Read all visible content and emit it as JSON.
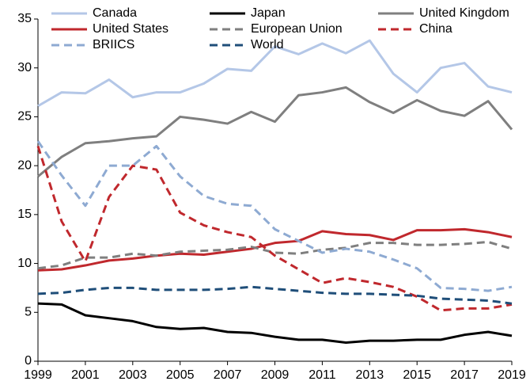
{
  "chart_data": {
    "type": "line",
    "x": [
      1999,
      2000,
      2001,
      2002,
      2003,
      2004,
      2005,
      2006,
      2007,
      2008,
      2009,
      2010,
      2011,
      2012,
      2013,
      2014,
      2015,
      2016,
      2017,
      2018,
      2019
    ],
    "xlim": [
      1999,
      2019
    ],
    "xticks": [
      1999,
      2001,
      2003,
      2005,
      2007,
      2009,
      2011,
      2013,
      2015,
      2017,
      2019
    ],
    "ylim": [
      0,
      35
    ],
    "yticks": [
      0,
      5,
      10,
      15,
      20,
      25,
      30,
      35
    ],
    "series": [
      {
        "name": "Canada",
        "color": "#b4c7e7",
        "dashed": false,
        "values": [
          26.1,
          27.5,
          27.4,
          28.8,
          27.0,
          27.5,
          27.5,
          28.4,
          29.9,
          29.7,
          32.2,
          31.4,
          32.5,
          31.5,
          32.8,
          29.4,
          27.5,
          30.0,
          30.5,
          28.1,
          27.5
        ]
      },
      {
        "name": "Japan",
        "color": "#000000",
        "dashed": false,
        "values": [
          5.9,
          5.8,
          4.7,
          4.4,
          4.1,
          3.5,
          3.3,
          3.4,
          3.0,
          2.9,
          2.5,
          2.2,
          2.2,
          1.9,
          2.1,
          2.1,
          2.2,
          2.2,
          2.7,
          3.0,
          2.6
        ]
      },
      {
        "name": "United Kingdom",
        "color": "#7f7f7f",
        "dashed": false,
        "values": [
          18.9,
          20.9,
          22.3,
          22.5,
          22.8,
          23.0,
          25.0,
          24.7,
          24.3,
          25.5,
          24.5,
          27.2,
          27.5,
          28.0,
          26.5,
          25.4,
          26.7,
          25.6,
          25.1,
          26.6,
          23.7
        ]
      },
      {
        "name": "United States",
        "color": "#c0282d",
        "dashed": false,
        "values": [
          9.3,
          9.4,
          9.8,
          10.3,
          10.5,
          10.8,
          11.0,
          10.9,
          11.2,
          11.5,
          12.1,
          12.3,
          13.3,
          13.0,
          12.9,
          12.4,
          13.4,
          13.4,
          13.5,
          13.2,
          12.7
        ]
      },
      {
        "name": "European Union",
        "color": "#7f7f7f",
        "dashed": true,
        "values": [
          9.5,
          9.8,
          10.6,
          10.6,
          11.0,
          10.8,
          11.2,
          11.3,
          11.4,
          11.7,
          11.1,
          11.0,
          11.4,
          11.6,
          12.1,
          12.1,
          11.9,
          11.9,
          12.0,
          12.2,
          11.5
        ]
      },
      {
        "name": "China",
        "color": "#c0282d",
        "dashed": true,
        "values": [
          22.0,
          14.3,
          10.2,
          16.8,
          20.0,
          19.6,
          15.2,
          13.9,
          13.2,
          12.7,
          10.8,
          9.4,
          8.0,
          8.5,
          8.1,
          7.6,
          6.6,
          5.2,
          5.4,
          5.4,
          5.8
        ]
      },
      {
        "name": "BRIICS",
        "color": "#8eaad2",
        "dashed": true,
        "values": [
          22.5,
          19.0,
          15.9,
          20.0,
          20.0,
          22.0,
          18.9,
          16.9,
          16.1,
          15.9,
          13.5,
          12.3,
          11.1,
          11.5,
          11.2,
          10.4,
          9.5,
          7.5,
          7.4,
          7.2,
          7.6
        ]
      },
      {
        "name": "World",
        "color": "#1f4e79",
        "dashed": true,
        "values": [
          6.9,
          7.0,
          7.3,
          7.5,
          7.5,
          7.3,
          7.3,
          7.3,
          7.4,
          7.6,
          7.4,
          7.2,
          7.0,
          6.9,
          6.9,
          6.8,
          6.7,
          6.4,
          6.3,
          6.2,
          5.9
        ]
      }
    ]
  }
}
